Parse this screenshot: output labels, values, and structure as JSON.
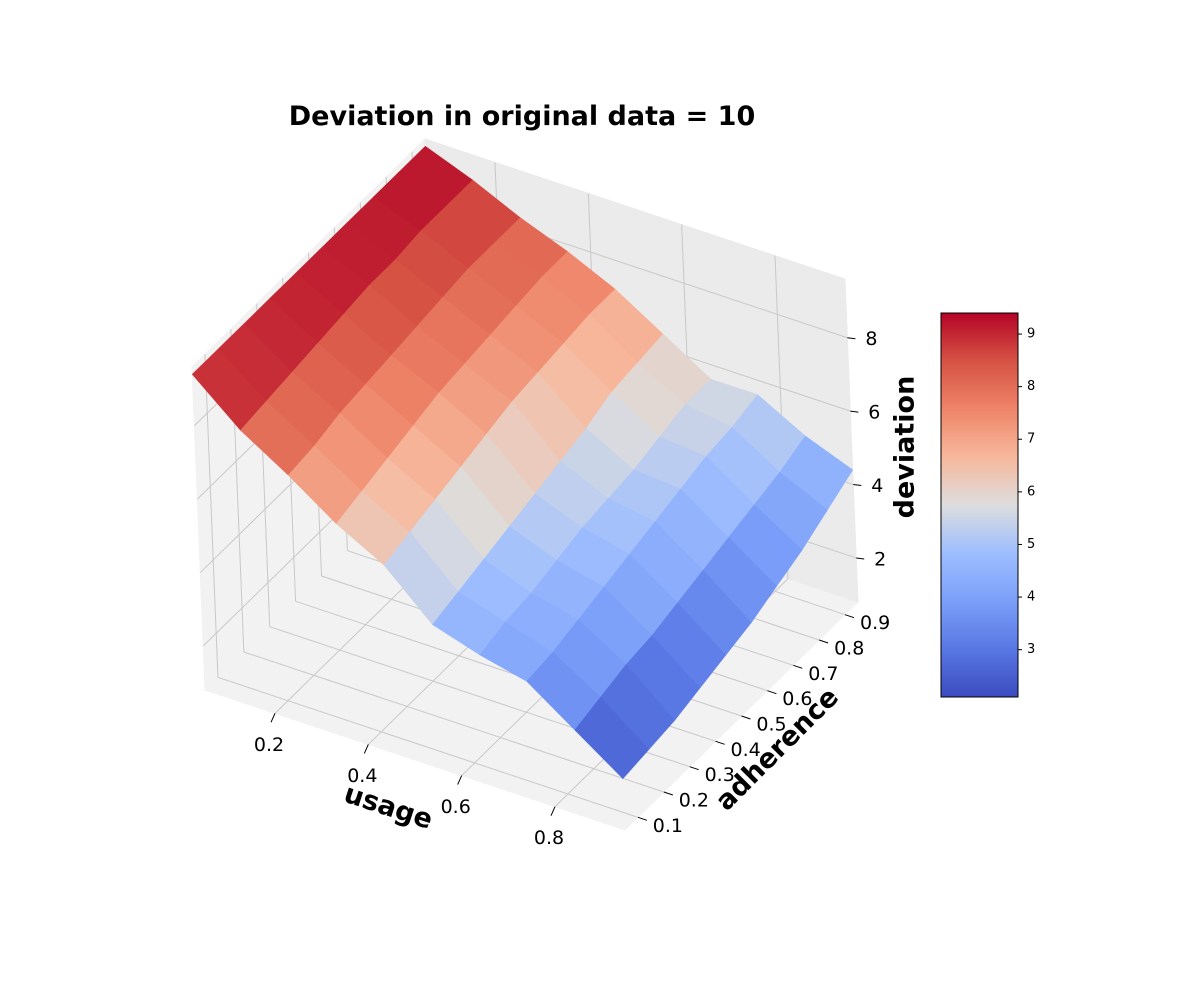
{
  "chart_data": {
    "type": "surface",
    "title": "Deviation in original data = 10",
    "xlabel": "usage",
    "ylabel": "adherence",
    "zlabel": "deviation",
    "x": [
      0.05,
      0.15,
      0.25,
      0.35,
      0.45,
      0.55,
      0.65,
      0.75,
      0.85,
      0.95
    ],
    "y": [
      0.05,
      0.15,
      0.25,
      0.35,
      0.45,
      0.55,
      0.65,
      0.75,
      0.85,
      0.95
    ],
    "x_ticks": [
      "0.2",
      "0.4",
      "0.6",
      "0.8"
    ],
    "y_ticks": [
      "0.1",
      "0.2",
      "0.3",
      "0.4",
      "0.5",
      "0.6",
      "0.7",
      "0.8",
      "0.9"
    ],
    "z_ticks": [
      "2",
      "4",
      "6",
      "8"
    ],
    "z": [
      [
        9.4,
        9.4,
        9.4,
        9.4,
        9.4,
        9.4,
        9.4,
        9.4,
        9.4,
        9.4
      ],
      [
        8.3,
        8.4,
        8.5,
        8.6,
        8.7,
        8.8,
        8.8,
        8.9,
        8.9,
        8.9
      ],
      [
        7.5,
        7.6,
        7.8,
        7.9,
        8.0,
        8.1,
        8.2,
        8.3,
        8.3,
        8.3
      ],
      [
        6.6,
        6.8,
        7.0,
        7.2,
        7.4,
        7.5,
        7.6,
        7.7,
        7.8,
        7.8
      ],
      [
        5.9,
        6.1,
        6.3,
        6.5,
        6.7,
        6.9,
        7.0,
        7.1,
        7.2,
        7.2
      ],
      [
        4.7,
        4.9,
        5.1,
        5.3,
        5.5,
        5.7,
        5.9,
        6.2,
        6.3,
        6.4
      ],
      [
        4.3,
        4.5,
        4.6,
        4.8,
        5.0,
        5.1,
        5.2,
        5.4,
        5.6,
        5.6
      ],
      [
        4.0,
        4.1,
        4.3,
        4.5,
        4.7,
        4.9,
        5.1,
        5.3,
        5.4,
        5.6
      ],
      [
        3.1,
        3.3,
        3.5,
        3.6,
        3.8,
        4.0,
        4.2,
        4.4,
        4.6,
        4.9
      ],
      [
        2.2,
        2.3,
        2.4,
        2.6,
        2.8,
        3.0,
        3.3,
        3.6,
        4.0,
        4.4
      ]
    ],
    "xlim": [
      0.05,
      0.95
    ],
    "ylim": [
      0.05,
      0.95
    ],
    "zlim": [
      0.8,
      9.6
    ],
    "colormap": "coolwarm",
    "colorbar": {
      "ticks": [
        "3",
        "4",
        "5",
        "6",
        "7",
        "8",
        "9"
      ],
      "min": 2.1,
      "max": 9.4
    }
  }
}
